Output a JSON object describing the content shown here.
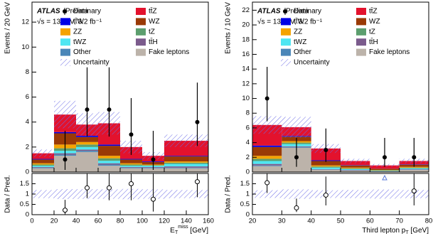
{
  "chart_data": [
    {
      "type": "stacked_histogram",
      "experiment": "ATLAS",
      "status": "Preliminary",
      "energy_label": "√s = 13 TeV, 3.2 fb⁻¹",
      "y_label": "Events / 20 GeV",
      "x_label": "E_T^miss [GeV]",
      "bins": [
        0,
        20,
        40,
        60,
        80,
        100,
        120,
        160
      ],
      "xlim": [
        0,
        160
      ],
      "xticks": [
        0,
        20,
        40,
        60,
        80,
        100,
        120,
        140,
        160
      ],
      "ylim": [
        0,
        13.6
      ],
      "yticks": [
        0,
        2,
        4,
        6,
        8,
        10,
        12
      ],
      "series": [
        {
          "name": "tt̄Z",
          "color": "#e3122d",
          "values": [
            0.45,
            1.4,
            0.9,
            1.7,
            0.95,
            0.45,
            1.2
          ]
        },
        {
          "name": "tt̄W",
          "color": "#0000e6",
          "values": [
            0.05,
            0.1,
            0.1,
            0.1,
            0.05,
            0.05,
            0.05
          ]
        },
        {
          "name": "WZ",
          "color": "#9a3a06",
          "values": [
            0.3,
            0.9,
            0.4,
            0.8,
            0.3,
            0.2,
            0.4
          ]
        },
        {
          "name": "ZZ",
          "color": "#f5a300",
          "values": [
            0.1,
            0.3,
            0.2,
            0.2,
            0.1,
            0.05,
            0.1
          ]
        },
        {
          "name": "tZ",
          "color": "#5c9e6e",
          "values": [
            0.1,
            0.2,
            0.2,
            0.2,
            0.1,
            0.05,
            0.1
          ]
        },
        {
          "name": "tWZ",
          "color": "#4fe6f2",
          "values": [
            0.1,
            0.2,
            0.2,
            0.2,
            0.1,
            0.1,
            0.2
          ]
        },
        {
          "name": "tt̄H",
          "color": "#7b5b8c",
          "values": [
            0.05,
            0.1,
            0.1,
            0.1,
            0.05,
            0.05,
            0.1
          ]
        },
        {
          "name": "Other",
          "color": "#4a86b8",
          "values": [
            0.05,
            0.1,
            0.1,
            0.1,
            0.05,
            0.05,
            0.05
          ]
        },
        {
          "name": "Fake leptons",
          "color": "#bcb3aa",
          "values": [
            0.3,
            1.3,
            1.6,
            0.5,
            0.3,
            0.3,
            0.3
          ]
        }
      ],
      "uncertainty": {
        "name": "Uncertainty",
        "color": "#6b6be6",
        "values": [
          0.3,
          1.1,
          0.9,
          0.9,
          0.5,
          0.3,
          0.5
        ]
      },
      "data": {
        "name": "Data",
        "color": "#000000",
        "x": [
          30,
          50,
          70,
          90,
          110,
          150
        ],
        "values": [
          1,
          5,
          5,
          3,
          1,
          4
        ],
        "errors_low": [
          0.83,
          2.16,
          2.16,
          1.63,
          0.83,
          1.91
        ],
        "errors_high": [
          2.3,
          3.38,
          3.38,
          2.92,
          2.3,
          3.16
        ]
      },
      "ratio": {
        "y_label": "Data / Pred.",
        "ylim": [
          0,
          2
        ],
        "yticks": [
          0,
          0.5,
          1,
          1.5
        ],
        "x": [
          30,
          50,
          70,
          90,
          110,
          150
        ],
        "values": [
          0.22,
          1.3,
          1.3,
          1.5,
          0.75,
          1.6
        ],
        "errors_low": [
          0.2,
          0.5,
          0.6,
          0.8,
          0.6,
          0.75
        ],
        "errors_high": [
          0.5,
          0.7,
          0.9,
          1.2,
          1.6,
          1.2
        ]
      }
    },
    {
      "type": "stacked_histogram",
      "experiment": "ATLAS",
      "status": "Preliminary",
      "energy_label": "√s = 13 TeV, 3.2 fb⁻¹",
      "y_label": "Events / 10 GeV",
      "x_label": "Third lepton p_T [GeV]",
      "bins": [
        20,
        30,
        40,
        50,
        60,
        70,
        80
      ],
      "xlim": [
        20,
        80
      ],
      "xticks": [
        20,
        30,
        40,
        50,
        60,
        70,
        80
      ],
      "ylim": [
        0,
        23.1
      ],
      "yticks": [
        0,
        2,
        4,
        6,
        8,
        10,
        12,
        14,
        16,
        18,
        20,
        22
      ],
      "series": [
        {
          "name": "tt̄Z",
          "color": "#e3122d",
          "values": [
            2.8,
            1.2,
            1.6,
            0.55,
            0.44,
            0.45
          ]
        },
        {
          "name": "tt̄W",
          "color": "#0000e6",
          "values": [
            0.2,
            0.1,
            0.1,
            0.05,
            0.02,
            0.05
          ]
        },
        {
          "name": "WZ",
          "color": "#9a3a06",
          "values": [
            1.2,
            0.6,
            0.6,
            0.3,
            0.15,
            0.3
          ]
        },
        {
          "name": "ZZ",
          "color": "#f5a300",
          "values": [
            0.4,
            0.2,
            0.15,
            0.1,
            0.05,
            0.1
          ]
        },
        {
          "name": "tZ",
          "color": "#5c9e6e",
          "values": [
            0.3,
            0.2,
            0.15,
            0.1,
            0.05,
            0.1
          ]
        },
        {
          "name": "tWZ",
          "color": "#4fe6f2",
          "values": [
            0.4,
            0.3,
            0.2,
            0.1,
            0.05,
            0.1
          ]
        },
        {
          "name": "tt̄H",
          "color": "#7b5b8c",
          "values": [
            0.2,
            0.1,
            0.05,
            0.05,
            0.02,
            0.05
          ]
        },
        {
          "name": "Other",
          "color": "#4a86b8",
          "values": [
            0.1,
            0.1,
            0.05,
            0.05,
            0.02,
            0.05
          ]
        },
        {
          "name": "Fake leptons",
          "color": "#bcb3aa",
          "values": [
            0.8,
            3.3,
            0.3,
            0.2,
            0.1,
            0.3
          ]
        }
      ],
      "uncertainty": {
        "name": "Uncertainty",
        "color": "#6b6be6",
        "values": [
          1.2,
          1.4,
          0.6,
          0.3,
          0.2,
          0.3
        ]
      },
      "data": {
        "name": "Data",
        "color": "#000000",
        "x": [
          25,
          35,
          45,
          65,
          75
        ],
        "values": [
          10,
          2,
          3,
          2,
          2
        ],
        "errors_low": [
          3.1,
          1.29,
          1.63,
          1.29,
          1.29
        ],
        "errors_high": [
          4.3,
          2.64,
          2.92,
          2.64,
          2.64
        ]
      },
      "ratio": {
        "y_label": "Data / Pred.",
        "ylim": [
          0,
          2
        ],
        "yticks": [
          0,
          0.5,
          1,
          1.5
        ],
        "x": [
          25,
          35,
          45,
          65,
          75
        ],
        "values": [
          1.55,
          0.33,
          0.95,
          2.2,
          1.15
        ],
        "errors_low": [
          0.5,
          0.2,
          0.5,
          1.4,
          0.7
        ],
        "errors_high": [
          0.7,
          0.45,
          0.9,
          2.9,
          1.5
        ]
      }
    }
  ]
}
